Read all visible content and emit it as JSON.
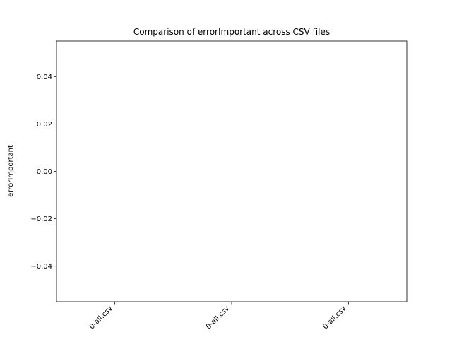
{
  "chart_data": {
    "type": "bar",
    "title": "Comparison of  errorImportant across CSV files",
    "xlabel": "",
    "ylabel": "errorImportant",
    "categories": [
      "0-all.csv",
      "0-all.csv",
      "0-all.csv"
    ],
    "values": [
      0,
      0,
      0
    ],
    "ylim": [
      -0.055,
      0.055
    ],
    "yticks": [
      -0.04,
      -0.02,
      0.0,
      0.02,
      0.04
    ],
    "ytick_labels": [
      "−0.04",
      "−0.02",
      "0.00",
      "0.02",
      "0.04"
    ],
    "grid": false,
    "legend": false,
    "colors": {
      "axes": "#000000",
      "bar": "#1f77b4",
      "background": "#ffffff"
    }
  }
}
